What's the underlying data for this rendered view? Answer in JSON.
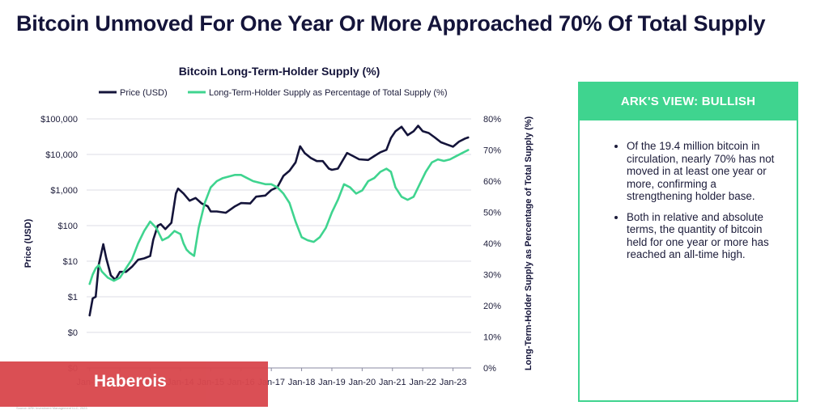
{
  "headline": "Bitcoin Unmoved For One Year Or More Approached 70% Of Total Supply",
  "ark_view": {
    "header": "ARK'S VIEW: BULLISH",
    "bullets": [
      "Of the 19.4 million bitcoin in circulation, nearly 70% has not moved in at least one year or more, confirming a strengthening holder base.",
      "Both in relative and absolute terms, the quantity of bitcoin held for one year or more has reached an all-time high."
    ]
  },
  "watermark": "Haberois",
  "footnote": "Source: ARK Investment Management LLC, 2023",
  "colors": {
    "price": "#14143a",
    "lth": "#3fd48f",
    "accent": "#3fd48f",
    "watermark": "#d9484e"
  },
  "chart_data": {
    "type": "line",
    "title": "Bitcoin Long-Term-Holder Supply (%)",
    "ylabel": "Price (USD)",
    "y2label": "Long-Term-Holder Supply as Percentage of Total Supply (%)",
    "y_scale": "log",
    "ylim": [
      0.01,
      100000
    ],
    "y_ticks": [
      {
        "value": 100000,
        "label": "$100,000"
      },
      {
        "value": 10000,
        "label": "$10,000"
      },
      {
        "value": 1000,
        "label": "$1,000"
      },
      {
        "value": 100,
        "label": "$100"
      },
      {
        "value": 10,
        "label": "$10"
      },
      {
        "value": 1,
        "label": "$1"
      },
      {
        "value": 0.1,
        "label": "$0"
      },
      {
        "value": 0.01,
        "label": "$0"
      }
    ],
    "y2lim": [
      0,
      80
    ],
    "y2_ticks": [
      {
        "value": 80,
        "label": "80%"
      },
      {
        "value": 70,
        "label": "70%"
      },
      {
        "value": 60,
        "label": "60%"
      },
      {
        "value": 50,
        "label": "50%"
      },
      {
        "value": 40,
        "label": "40%"
      },
      {
        "value": 30,
        "label": "30%"
      },
      {
        "value": 20,
        "label": "20%"
      },
      {
        "value": 10,
        "label": "10%"
      },
      {
        "value": 0,
        "label": "0%"
      }
    ],
    "xlim": [
      2010.9,
      2023.6
    ],
    "x_ticks": [
      {
        "value": 2011,
        "label": "Jan-11"
      },
      {
        "value": 2012,
        "label": "Jan-12"
      },
      {
        "value": 2013,
        "label": "Jan-13"
      },
      {
        "value": 2014,
        "label": "Jan-14"
      },
      {
        "value": 2015,
        "label": "Jan-15"
      },
      {
        "value": 2016,
        "label": "Jan-16"
      },
      {
        "value": 2017,
        "label": "Jan-17"
      },
      {
        "value": 2018,
        "label": "Jan-18"
      },
      {
        "value": 2019,
        "label": "Jan-19"
      },
      {
        "value": 2020,
        "label": "Jan-20"
      },
      {
        "value": 2021,
        "label": "Jan-21"
      },
      {
        "value": 2022,
        "label": "Jan-22"
      },
      {
        "value": 2023,
        "label": "Jan-23"
      }
    ],
    "series": [
      {
        "name": "Price (USD)",
        "axis": "left",
        "x": [
          2011.0,
          2011.1,
          2011.2,
          2011.3,
          2011.45,
          2011.55,
          2011.7,
          2011.85,
          2012.0,
          2012.2,
          2012.4,
          2012.6,
          2012.8,
          2013.0,
          2013.1,
          2013.25,
          2013.35,
          2013.5,
          2013.7,
          2013.85,
          2013.92,
          2014.1,
          2014.3,
          2014.5,
          2014.7,
          2014.9,
          2015.0,
          2015.2,
          2015.5,
          2015.8,
          2016.0,
          2016.3,
          2016.5,
          2016.8,
          2017.0,
          2017.2,
          2017.4,
          2017.6,
          2017.8,
          2017.95,
          2018.1,
          2018.3,
          2018.5,
          2018.7,
          2018.9,
          2019.0,
          2019.2,
          2019.5,
          2019.7,
          2019.9,
          2020.2,
          2020.4,
          2020.6,
          2020.8,
          2020.95,
          2021.1,
          2021.3,
          2021.5,
          2021.7,
          2021.85,
          2022.0,
          2022.2,
          2022.4,
          2022.6,
          2022.8,
          2023.0,
          2023.2,
          2023.4,
          2023.5
        ],
        "values": [
          0.3,
          0.9,
          1.0,
          8,
          30,
          12,
          4,
          3,
          5,
          5,
          7,
          11,
          12,
          14,
          40,
          100,
          110,
          80,
          120,
          800,
          1100,
          800,
          500,
          600,
          420,
          350,
          250,
          250,
          230,
          350,
          430,
          420,
          650,
          700,
          1000,
          1200,
          2500,
          3500,
          6000,
          17000,
          11000,
          8000,
          6500,
          6500,
          4000,
          3700,
          4000,
          11000,
          9000,
          7300,
          7000,
          9000,
          11500,
          13500,
          29000,
          45000,
          60000,
          35000,
          45000,
          64000,
          45000,
          40000,
          30000,
          22000,
          19000,
          16500,
          23000,
          28000,
          30000
        ]
      },
      {
        "name": "Long-Term-Holder Supply as Percentage of Total Supply (%)",
        "axis": "right",
        "x": [
          2011.0,
          2011.1,
          2011.2,
          2011.3,
          2011.4,
          2011.6,
          2011.8,
          2012.0,
          2012.2,
          2012.4,
          2012.6,
          2012.8,
          2013.0,
          2013.2,
          2013.4,
          2013.6,
          2013.8,
          2014.0,
          2014.1,
          2014.2,
          2014.3,
          2014.45,
          2014.6,
          2014.8,
          2015.0,
          2015.2,
          2015.4,
          2015.6,
          2015.8,
          2016.0,
          2016.2,
          2016.4,
          2016.6,
          2016.8,
          2017.0,
          2017.2,
          2017.4,
          2017.6,
          2017.8,
          2018.0,
          2018.2,
          2018.4,
          2018.6,
          2018.8,
          2019.0,
          2019.2,
          2019.4,
          2019.6,
          2019.8,
          2020.0,
          2020.2,
          2020.4,
          2020.6,
          2020.8,
          2020.95,
          2021.1,
          2021.3,
          2021.5,
          2021.7,
          2021.9,
          2022.1,
          2022.3,
          2022.5,
          2022.7,
          2022.9,
          2023.1,
          2023.3,
          2023.5
        ],
        "values": [
          27,
          30,
          32,
          33,
          31,
          29,
          28,
          29,
          32,
          35,
          40,
          44,
          47,
          45,
          41,
          42,
          44,
          43,
          40,
          38,
          37,
          36,
          45,
          53,
          58,
          60,
          61,
          61.5,
          62,
          62,
          61,
          60,
          59.5,
          59,
          59,
          58,
          56,
          53,
          47,
          42,
          41,
          40.5,
          42,
          45,
          50,
          54,
          59,
          58,
          56,
          57,
          60,
          61,
          63,
          64,
          63,
          58,
          55,
          54,
          55,
          59,
          63,
          66,
          67,
          66.5,
          67,
          68,
          69,
          70
        ]
      }
    ],
    "legend": {
      "placement": "top-left",
      "orientation": "horizontal"
    }
  }
}
